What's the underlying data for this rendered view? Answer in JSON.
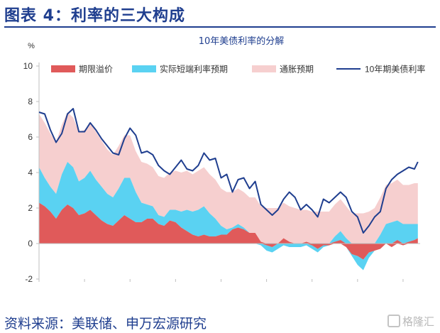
{
  "figure_title": "图表 4：利率的三大构成",
  "source_note": "资料来源：美联储、申万宏源研究",
  "watermark": "格隆汇",
  "colors": {
    "term_premium": "#e05a5a",
    "real_rate": "#5ad2f2",
    "inflation_exp": "#f6cfcf",
    "yield_line": "#1f3e8f",
    "heading": "#1f3e8f"
  },
  "chart_data": {
    "type": "area",
    "title": "10年美债利率的分解",
    "y_unit": "%",
    "ylim": [
      -2,
      10
    ],
    "y_ticks": [
      "-2",
      "0",
      "2",
      "4",
      "6",
      "8",
      "10"
    ],
    "xlim": [
      1992,
      2025.5
    ],
    "x_ticks": [
      "1992",
      "1996",
      "2000",
      "2004",
      "2008",
      "2012",
      "2016",
      "2020",
      "2024"
    ],
    "grid": false,
    "legend_position": "top",
    "legend": [
      {
        "name": "期限溢价",
        "kind": "area",
        "color": "#e05a5a"
      },
      {
        "name": "实际短端利率预期",
        "kind": "area",
        "color": "#5ad2f2"
      },
      {
        "name": "通胀预期",
        "kind": "area",
        "color": "#f6cfcf"
      },
      {
        "name": "10年期美债利率",
        "kind": "line",
        "color": "#1f3e8f"
      }
    ],
    "x": [
      1992,
      1992.5,
      1993,
      1993.5,
      1994,
      1994.5,
      1995,
      1995.5,
      1996,
      1996.5,
      1997,
      1997.5,
      1998,
      1998.5,
      1999,
      1999.5,
      2000,
      2000.5,
      2001,
      2001.5,
      2002,
      2002.5,
      2003,
      2003.5,
      2004,
      2004.5,
      2005,
      2005.5,
      2006,
      2006.5,
      2007,
      2007.5,
      2008,
      2008.5,
      2009,
      2009.5,
      2010,
      2010.5,
      2011,
      2011.5,
      2012,
      2012.5,
      2013,
      2013.5,
      2014,
      2014.5,
      2015,
      2015.5,
      2016,
      2016.5,
      2017,
      2017.5,
      2018,
      2018.5,
      2019,
      2019.5,
      2020,
      2020.5,
      2021,
      2021.5,
      2022,
      2022.5,
      2023,
      2023.5,
      2024,
      2024.5,
      2025,
      2025.3
    ],
    "series": [
      {
        "name": "期限溢价",
        "values": [
          2.3,
          2.1,
          1.8,
          1.4,
          1.9,
          2.2,
          2.0,
          1.6,
          1.7,
          1.9,
          1.6,
          1.3,
          1.1,
          1.0,
          1.3,
          1.6,
          1.4,
          1.2,
          1.2,
          1.4,
          1.4,
          1.1,
          1.0,
          1.3,
          1.2,
          0.9,
          0.7,
          0.5,
          0.4,
          0.5,
          0.4,
          0.4,
          0.5,
          0.5,
          0.8,
          0.9,
          0.8,
          0.6,
          0.6,
          0.1,
          -0.1,
          -0.2,
          0.0,
          0.3,
          0.1,
          0.0,
          0.0,
          0.1,
          -0.1,
          -0.3,
          -0.1,
          -0.1,
          0.1,
          0.2,
          -0.2,
          -0.6,
          -0.7,
          -0.9,
          -0.5,
          -0.4,
          -0.3,
          0.0,
          -0.2,
          0.2,
          -0.1,
          0.1,
          0.2,
          0.3
        ]
      },
      {
        "name": "实际短端利率预期",
        "values": [
          2.0,
          1.6,
          1.4,
          1.4,
          2.0,
          2.4,
          2.3,
          1.9,
          2.0,
          2.2,
          2.0,
          1.9,
          1.7,
          1.6,
          1.8,
          2.1,
          2.3,
          1.7,
          1.1,
          0.8,
          0.7,
          0.5,
          0.5,
          0.6,
          0.7,
          0.9,
          1.2,
          1.3,
          1.5,
          1.6,
          1.3,
          1.0,
          0.5,
          0.3,
          0.1,
          0.2,
          0.1,
          0.0,
          0.0,
          -0.1,
          -0.3,
          -0.3,
          -0.3,
          -0.1,
          -0.2,
          -0.2,
          -0.2,
          -0.1,
          -0.2,
          -0.2,
          -0.1,
          0.0,
          0.3,
          0.5,
          0.3,
          -0.1,
          -0.5,
          -0.6,
          -0.3,
          0.0,
          0.5,
          1.1,
          1.2,
          1.1,
          1.1,
          1.0,
          0.9,
          0.8
        ]
      },
      {
        "name": "通胀预期",
        "values": [
          3.0,
          3.1,
          3.0,
          2.9,
          2.8,
          2.8,
          2.8,
          2.8,
          2.7,
          2.7,
          2.7,
          2.6,
          2.5,
          2.4,
          2.4,
          2.4,
          2.4,
          2.3,
          2.3,
          2.3,
          2.2,
          2.2,
          2.2,
          2.1,
          2.2,
          2.2,
          2.2,
          2.1,
          2.2,
          2.2,
          2.2,
          2.2,
          2.1,
          2.1,
          2.0,
          2.0,
          2.0,
          2.0,
          2.0,
          2.0,
          2.0,
          2.0,
          2.0,
          2.0,
          2.0,
          2.0,
          1.9,
          1.8,
          1.8,
          1.8,
          1.8,
          1.8,
          1.8,
          1.8,
          1.8,
          1.7,
          1.7,
          1.7,
          1.8,
          2.0,
          2.1,
          2.2,
          2.2,
          2.3,
          2.2,
          2.2,
          2.3,
          2.3
        ]
      },
      {
        "name": "10年期美债利率",
        "values": [
          7.4,
          7.3,
          6.4,
          5.7,
          6.2,
          7.3,
          7.6,
          6.3,
          6.3,
          6.8,
          6.4,
          5.9,
          5.5,
          5.1,
          5.0,
          5.9,
          6.5,
          6.1,
          5.1,
          5.2,
          5.0,
          4.4,
          4.1,
          3.9,
          4.3,
          4.7,
          4.2,
          4.1,
          4.4,
          5.1,
          4.7,
          4.8,
          3.7,
          3.9,
          2.9,
          3.6,
          3.7,
          3.1,
          3.5,
          2.2,
          1.9,
          1.6,
          1.9,
          2.5,
          2.9,
          2.6,
          1.9,
          2.2,
          1.9,
          1.5,
          2.5,
          2.3,
          2.6,
          2.9,
          2.6,
          1.8,
          1.5,
          0.6,
          1.0,
          1.5,
          1.8,
          3.1,
          3.6,
          3.9,
          4.1,
          4.3,
          4.2,
          4.6
        ]
      }
    ]
  }
}
